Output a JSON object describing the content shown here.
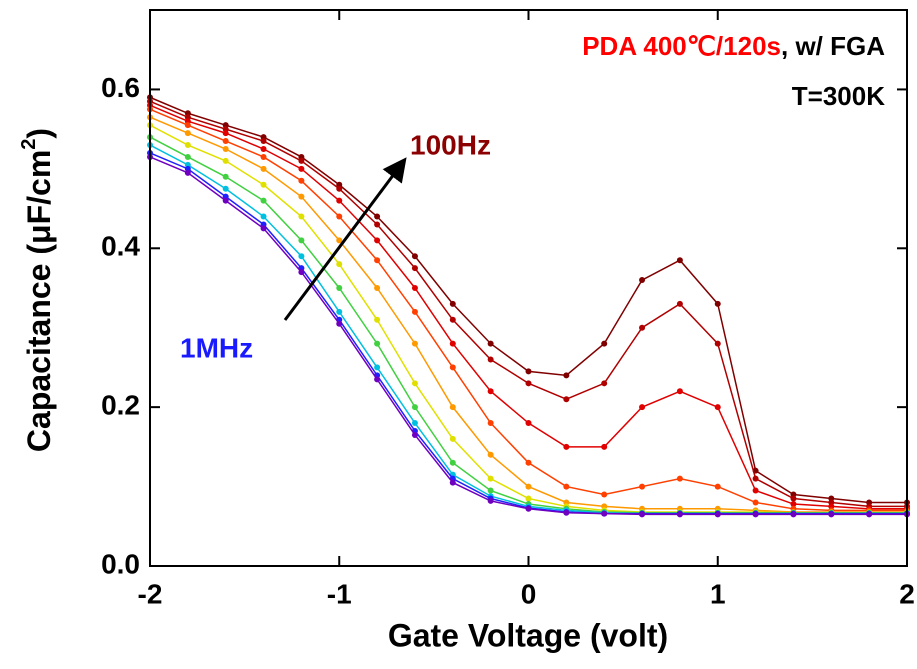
{
  "chart_data": {
    "type": "line",
    "x_label": "Gate Voltage (volt)",
    "y_label": {
      "text": "Capacitance (μF/cm",
      "sup": "2",
      "end": ")"
    },
    "annotations": {
      "condition": "PDA 400℃/120s",
      "condition_suffix": ", w/ FGA",
      "temperature": "T=300K",
      "low_freq": "100Hz",
      "high_freq": "1MHz"
    },
    "x": [
      -2,
      -1.8,
      -1.6,
      -1.4,
      -1.2,
      -1,
      -0.8,
      -0.6,
      -0.4,
      -0.2,
      0,
      0.2,
      0.4,
      0.6,
      0.8,
      1,
      1.2,
      1.4,
      1.6,
      1.8,
      2
    ],
    "series": [
      {
        "color": "#800000",
        "values": [
          0.59,
          0.57,
          0.555,
          0.54,
          0.515,
          0.48,
          0.44,
          0.39,
          0.33,
          0.28,
          0.245,
          0.24,
          0.28,
          0.36,
          0.385,
          0.33,
          0.12,
          0.09,
          0.085,
          0.08,
          0.08
        ]
      },
      {
        "color": "#b00000",
        "values": [
          0.585,
          0.565,
          0.55,
          0.535,
          0.51,
          0.475,
          0.43,
          0.375,
          0.31,
          0.26,
          0.23,
          0.21,
          0.23,
          0.3,
          0.33,
          0.28,
          0.11,
          0.085,
          0.08,
          0.075,
          0.075
        ]
      },
      {
        "color": "#e00000",
        "values": [
          0.58,
          0.56,
          0.545,
          0.525,
          0.5,
          0.46,
          0.41,
          0.35,
          0.28,
          0.22,
          0.18,
          0.15,
          0.15,
          0.2,
          0.22,
          0.2,
          0.095,
          0.078,
          0.075,
          0.072,
          0.072
        ]
      },
      {
        "color": "#ff4000",
        "values": [
          0.575,
          0.555,
          0.535,
          0.515,
          0.485,
          0.44,
          0.385,
          0.32,
          0.25,
          0.18,
          0.13,
          0.1,
          0.09,
          0.1,
          0.11,
          0.1,
          0.08,
          0.072,
          0.07,
          0.07,
          0.07
        ]
      },
      {
        "color": "#ff9900",
        "values": [
          0.565,
          0.545,
          0.525,
          0.5,
          0.465,
          0.41,
          0.35,
          0.28,
          0.2,
          0.14,
          0.1,
          0.08,
          0.075,
          0.072,
          0.072,
          0.072,
          0.07,
          0.068,
          0.068,
          0.068,
          0.068
        ]
      },
      {
        "color": "#e0e000",
        "values": [
          0.555,
          0.53,
          0.51,
          0.48,
          0.44,
          0.38,
          0.31,
          0.23,
          0.16,
          0.11,
          0.085,
          0.075,
          0.07,
          0.068,
          0.068,
          0.068,
          0.068,
          0.067,
          0.067,
          0.067,
          0.067
        ]
      },
      {
        "color": "#40d040",
        "values": [
          0.54,
          0.515,
          0.49,
          0.46,
          0.41,
          0.35,
          0.28,
          0.2,
          0.13,
          0.095,
          0.078,
          0.072,
          0.068,
          0.067,
          0.067,
          0.067,
          0.067,
          0.067,
          0.067,
          0.067,
          0.067
        ]
      },
      {
        "color": "#00c0e0",
        "values": [
          0.53,
          0.505,
          0.475,
          0.44,
          0.39,
          0.32,
          0.25,
          0.18,
          0.115,
          0.088,
          0.075,
          0.07,
          0.067,
          0.066,
          0.066,
          0.066,
          0.066,
          0.066,
          0.066,
          0.066,
          0.066
        ]
      },
      {
        "color": "#2020ff",
        "values": [
          0.52,
          0.5,
          0.465,
          0.43,
          0.375,
          0.31,
          0.24,
          0.17,
          0.11,
          0.085,
          0.073,
          0.068,
          0.066,
          0.066,
          0.066,
          0.066,
          0.066,
          0.066,
          0.066,
          0.066,
          0.066
        ]
      },
      {
        "color": "#7000c0",
        "values": [
          0.515,
          0.495,
          0.46,
          0.425,
          0.37,
          0.305,
          0.235,
          0.165,
          0.105,
          0.082,
          0.072,
          0.067,
          0.066,
          0.065,
          0.065,
          0.065,
          0.065,
          0.065,
          0.065,
          0.065,
          0.065
        ]
      }
    ],
    "xlim": [
      -2,
      2
    ],
    "ylim": [
      0,
      0.7
    ],
    "xticks": [
      -2,
      -1,
      0,
      1,
      2
    ],
    "yticks": [
      {
        "value": 0,
        "label": "0.0"
      },
      0.2,
      0.4,
      0.6
    ],
    "annotation_colors": {
      "condition": "#ff0000",
      "low_freq": "#8b0000",
      "high_freq": "#1a1aff"
    }
  }
}
